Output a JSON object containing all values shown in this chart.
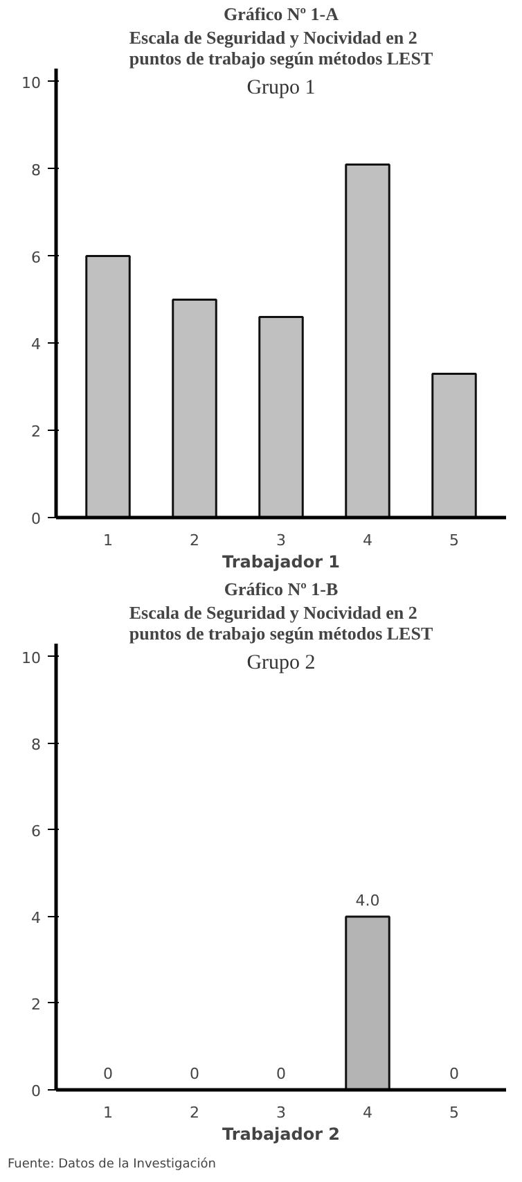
{
  "chart_data": [
    {
      "type": "bar",
      "title": "Gráfico Nº 1-A",
      "subtitle": "Escala de Seguridad y Nocividad en 2 puntos de trabajo según métodos LEST",
      "xlabel": "Trabajador 1",
      "categories": [
        "1",
        "2",
        "3",
        "4",
        "5"
      ],
      "values": [
        6.0,
        5.0,
        4.6,
        8.1,
        3.3
      ],
      "color": "#c0c0c0",
      "ylim": [
        0,
        10.3
      ],
      "yticks": [
        0,
        2,
        4,
        6,
        8,
        10
      ],
      "grid": false,
      "legend": false,
      "annotations": [
        "Grupo 1"
      ]
    },
    {
      "type": "bar",
      "title": "Gráfico Nº 1-B",
      "subtitle": "Escala de Seguridad y Nocividad en 2 puntos de trabajo según métodos LEST",
      "xlabel": "Trabajador 2",
      "categories": [
        "1",
        "2",
        "3",
        "4",
        "5"
      ],
      "values": [
        0,
        0,
        0,
        4.0,
        0
      ],
      "value_labels": [
        "0",
        "0",
        "0",
        "4.0",
        "0"
      ],
      "color": "#b4b4b4",
      "ylim": [
        0,
        10.3
      ],
      "yticks": [
        0,
        2,
        4,
        6,
        8,
        10
      ],
      "grid": false,
      "legend": false,
      "annotations": [
        "Grupo 2",
        "Fuente: Datos de la Investigación"
      ]
    }
  ]
}
